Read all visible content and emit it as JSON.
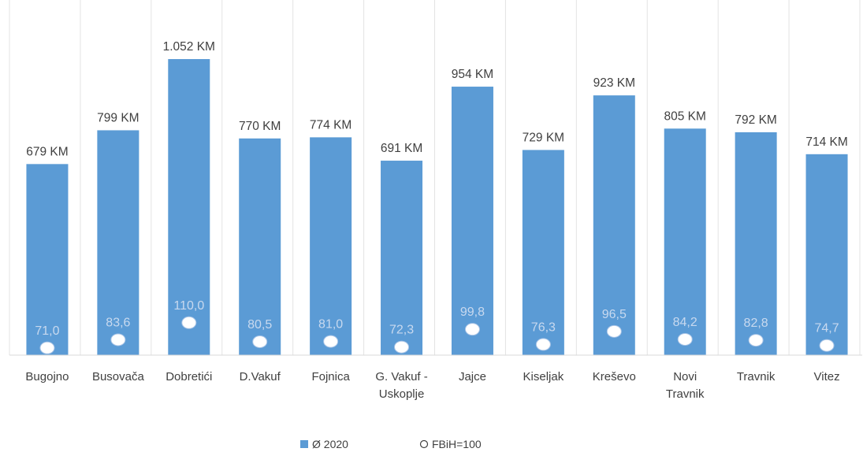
{
  "chart_data": {
    "type": "bar",
    "categories": [
      [
        "Bugojno"
      ],
      [
        "Busovača"
      ],
      [
        "Dobretići"
      ],
      [
        "D.Vakuf"
      ],
      [
        "Fojnica"
      ],
      [
        "G. Vakuf -",
        "Uskoplje"
      ],
      [
        "Jajce"
      ],
      [
        "Kiseljak"
      ],
      [
        "Kreševo"
      ],
      [
        "Novi",
        "Travnik"
      ],
      [
        "Travnik"
      ],
      [
        "Vitez"
      ]
    ],
    "series": [
      {
        "name": "Ø 2020",
        "type": "bar",
        "color": "#5b9bd5",
        "values": [
          679,
          799,
          1052,
          770,
          774,
          691,
          954,
          729,
          923,
          805,
          792,
          714
        ],
        "labels": [
          "679 KM",
          "799 KM",
          "1.052 KM",
          "770 KM",
          "774 KM",
          "691 KM",
          "954 KM",
          "729 KM",
          "923 KM",
          "805 KM",
          "792 KM",
          "714 KM"
        ]
      },
      {
        "name": "FBiH=100",
        "type": "scatter",
        "marker": "circle",
        "color": "#ffffff",
        "values": [
          71.0,
          83.6,
          110.0,
          80.5,
          81.0,
          72.3,
          99.8,
          76.3,
          96.5,
          84.2,
          82.8,
          74.7
        ],
        "labels": [
          "71,0",
          "83,6",
          "110,0",
          "80,5",
          "81,0",
          "72,3",
          "99,8",
          "76,3",
          "96,5",
          "84,2",
          "82,8",
          "74,7"
        ]
      }
    ],
    "ylim": [
      0,
      1150
    ],
    "secondary_ylim": [
      0,
      150
    ],
    "grid": false,
    "legend_position": "bottom"
  }
}
